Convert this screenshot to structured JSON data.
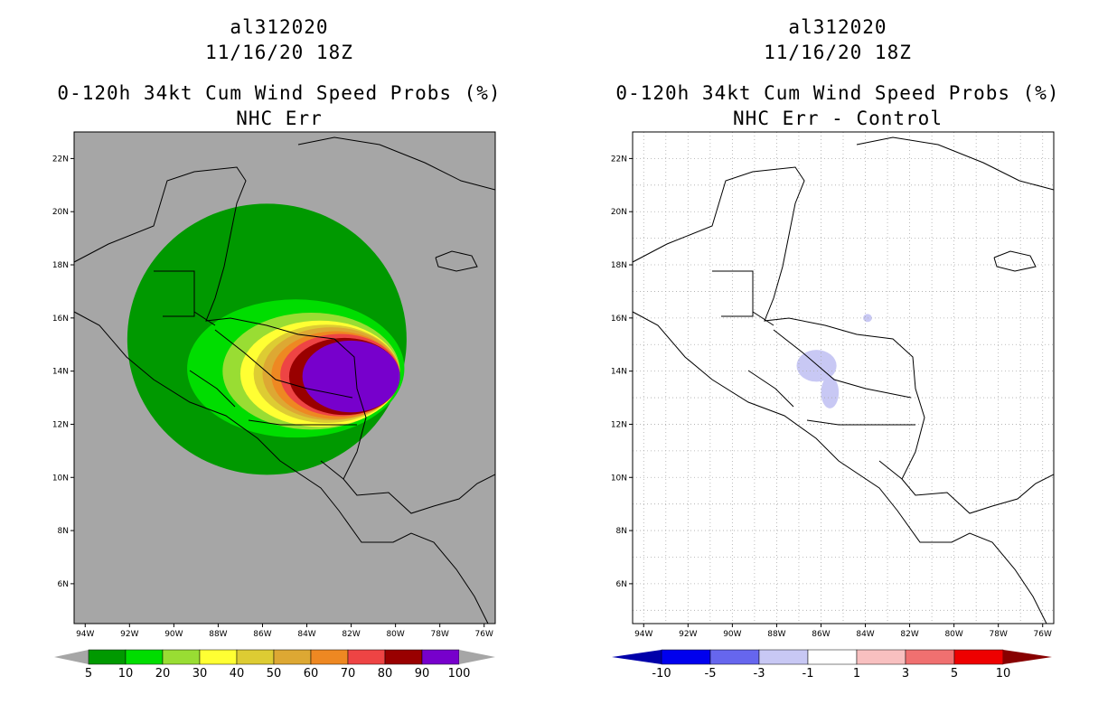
{
  "left_panel": {
    "title_line1": "al312020",
    "title_line2": "11/16/20 18Z",
    "title_line3": "0-120h 34kt Cum Wind Speed Probs (%)",
    "title_line4": "NHC Err"
  },
  "right_panel": {
    "title_line1": "al312020",
    "title_line2": "11/16/20 18Z",
    "title_line3": "0-120h 34kt Cum Wind Speed Probs (%)",
    "title_line4": "NHC Err - Control"
  },
  "chart_data": [
    {
      "type": "heatmap",
      "title": "0-120h 34kt Cum Wind Speed Probs (%)",
      "subtitle": "NHC Err",
      "storm": "al312020",
      "time": "11/16/20 18Z",
      "x_ticks": [
        "94W",
        "92W",
        "90W",
        "88W",
        "86W",
        "84W",
        "82W",
        "80W",
        "78W",
        "76W"
      ],
      "y_ticks": [
        "22N",
        "20N",
        "18N",
        "16N",
        "14N",
        "12N",
        "10N",
        "8N",
        "6N"
      ],
      "lon_range": [
        -94.5,
        -75.5
      ],
      "lat_range": [
        4.5,
        23
      ],
      "background_color": "#a6a6a6",
      "colorbar": {
        "labels": [
          "5",
          "10",
          "20",
          "30",
          "40",
          "50",
          "60",
          "70",
          "80",
          "90",
          "100"
        ],
        "colors": [
          "#009900",
          "#00dd00",
          "#99dd33",
          "#ffff33",
          "#ddcc33",
          "#dda833",
          "#ee8822",
          "#ee4444",
          "#990000",
          "#7700cc"
        ]
      },
      "contours": [
        {
          "level": 5,
          "color": "#009900",
          "center_lon": -85.8,
          "center_lat": 15.2,
          "radius_lon": 6.3,
          "radius_lat": 5.1
        },
        {
          "level": 10,
          "color": "#00dd00",
          "center_lon": -84.5,
          "center_lat": 14.1,
          "radius_lon": 4.9,
          "radius_lat": 2.6
        },
        {
          "level": 20,
          "color": "#99dd33",
          "center_lon": -83.8,
          "center_lat": 14.0,
          "radius_lon": 4.0,
          "radius_lat": 2.2
        },
        {
          "level": 30,
          "color": "#ffff33",
          "center_lon": -83.4,
          "center_lat": 13.9,
          "radius_lon": 3.6,
          "radius_lat": 2.0
        },
        {
          "level": 40,
          "color": "#ddcc33",
          "center_lon": -83.1,
          "center_lat": 13.9,
          "radius_lon": 3.3,
          "radius_lat": 1.85
        },
        {
          "level": 50,
          "color": "#dda833",
          "center_lon": -82.9,
          "center_lat": 13.9,
          "radius_lon": 3.1,
          "radius_lat": 1.75
        },
        {
          "level": 60,
          "color": "#ee8822",
          "center_lon": -82.7,
          "center_lat": 13.85,
          "radius_lon": 2.9,
          "radius_lat": 1.65
        },
        {
          "level": 70,
          "color": "#ee4444",
          "center_lon": -82.5,
          "center_lat": 13.85,
          "radius_lon": 2.7,
          "radius_lat": 1.55
        },
        {
          "level": 80,
          "color": "#990000",
          "center_lon": -82.3,
          "center_lat": 13.8,
          "radius_lon": 2.5,
          "radius_lat": 1.45
        },
        {
          "level": 90,
          "color": "#7700cc",
          "center_lon": -82.0,
          "center_lat": 13.8,
          "radius_lon": 2.2,
          "radius_lat": 1.35
        }
      ]
    },
    {
      "type": "heatmap",
      "title": "0-120h 34kt Cum Wind Speed Probs (%)",
      "subtitle": "NHC Err - Control",
      "storm": "al312020",
      "time": "11/16/20 18Z",
      "x_ticks": [
        "94W",
        "92W",
        "90W",
        "88W",
        "86W",
        "84W",
        "82W",
        "80W",
        "78W",
        "76W"
      ],
      "y_ticks": [
        "22N",
        "20N",
        "18N",
        "16N",
        "14N",
        "12N",
        "10N",
        "8N",
        "6N"
      ],
      "lon_range": [
        -94.5,
        -75.5
      ],
      "lat_range": [
        4.5,
        23
      ],
      "background_color": "#ffffff",
      "grid": true,
      "colorbar": {
        "labels": [
          "-10",
          "-5",
          "-3",
          "-1",
          "1",
          "3",
          "5",
          "10"
        ],
        "colors": [
          "#0000aa",
          "#0000ee",
          "#6666ee",
          "#c8c8f4",
          "#ffffff",
          "#f8c0c0",
          "#f07070",
          "#ee0000",
          "#880000"
        ]
      },
      "anomalies": [
        {
          "range": "-3 to -1",
          "color": "#c8c8f4",
          "center_lon": -86.2,
          "center_lat": 14.2,
          "radius_lon": 0.9,
          "radius_lat": 0.6
        },
        {
          "range": "-3 to -1",
          "color": "#c8c8f4",
          "center_lon": -85.6,
          "center_lat": 13.2,
          "radius_lon": 0.4,
          "radius_lat": 0.6
        },
        {
          "range": "-3 to -1",
          "color": "#c8c8f4",
          "center_lon": -83.9,
          "center_lat": 16.0,
          "radius_lon": 0.2,
          "radius_lat": 0.15
        }
      ]
    }
  ]
}
